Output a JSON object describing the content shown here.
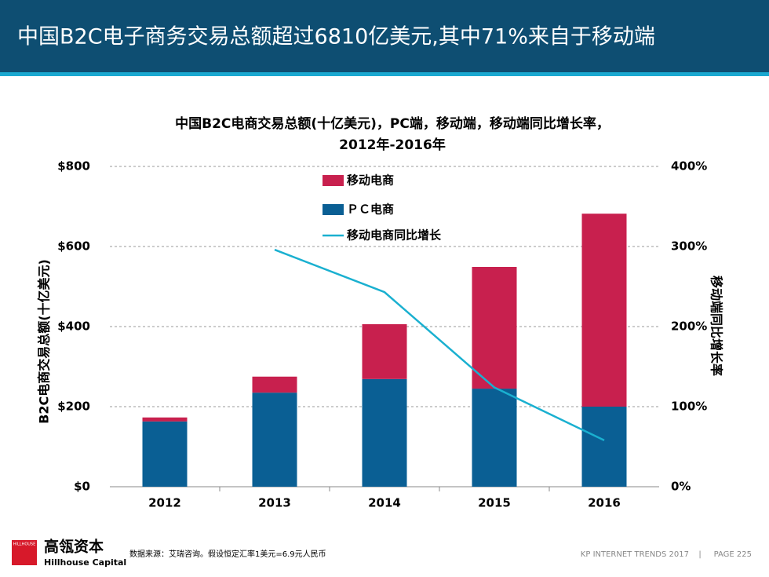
{
  "header": {
    "title": "中国B2C电子商务交易总额超过6810亿美元,其中71%来自于移动端"
  },
  "chart_data": {
    "type": "bar",
    "title": [
      "中国B2C电商交易总额(十亿美元)，PC端，移动端，移动端同比增长率，",
      "2012年-2016年"
    ],
    "y_label": "B2C电商交易总额(十亿美元)",
    "y2_label": "移动端同比增长率",
    "categories": [
      "2012",
      "2013",
      "2014",
      "2015",
      "2016"
    ],
    "series": [
      {
        "name": "移动电商",
        "type": "bar",
        "color": "#c8204e",
        "values": [
          10,
          40,
          137,
          304,
          482
        ]
      },
      {
        "name": "ＰＣ电商",
        "type": "bar",
        "color": "#0a5f94",
        "values": [
          163,
          235,
          269,
          245,
          200
        ]
      },
      {
        "name": "移动电商同比增长",
        "type": "line",
        "axis": "y2",
        "color": "#1ab0d0",
        "values": [
          null,
          296,
          243,
          124,
          58
        ]
      }
    ],
    "stacked": true,
    "ylim": [
      0,
      800
    ],
    "yticks": [
      {
        "value": 0,
        "label": "$0"
      },
      {
        "value": 200,
        "label": "$200"
      },
      {
        "value": 400,
        "label": "$400"
      },
      {
        "value": 600,
        "label": "$600"
      },
      {
        "value": 800,
        "label": "$800"
      }
    ],
    "y2lim": [
      0,
      400
    ],
    "y2ticks": [
      {
        "value": 0,
        "label": "0%"
      },
      {
        "value": 100,
        "label": "100%"
      },
      {
        "value": 200,
        "label": "200%"
      },
      {
        "value": 300,
        "label": "300%"
      },
      {
        "value": 400,
        "label": "400%"
      }
    ],
    "grid": true,
    "legend": "top"
  },
  "footer": {
    "logo_small": "HILLHOUSE",
    "logo_cn": "高瓴资本",
    "logo_en": "Hillhouse Capital",
    "source": "数据来源：艾瑞咨询。假设恒定汇率1美元=6.9元人民币",
    "report": "KP INTERNET TRENDS 2017",
    "page": "PAGE 225"
  }
}
